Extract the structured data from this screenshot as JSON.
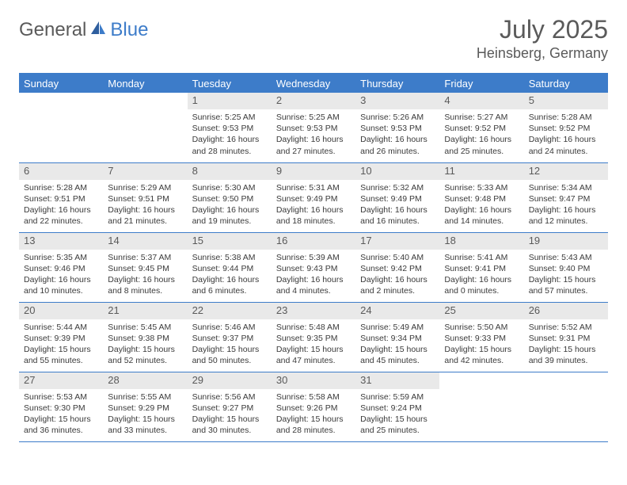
{
  "brand": {
    "text1": "General",
    "text2": "Blue"
  },
  "title": "July 2025",
  "location": "Heinsberg, Germany",
  "colors": {
    "accent": "#3d7cc9",
    "header_text": "#ffffff",
    "daynum_bg": "#e9e9e9",
    "text_muted": "#5a5a5a",
    "body_text": "#3a3a3a",
    "background": "#ffffff"
  },
  "columns": [
    "Sunday",
    "Monday",
    "Tuesday",
    "Wednesday",
    "Thursday",
    "Friday",
    "Saturday"
  ],
  "weeks": [
    [
      {
        "n": "",
        "sunrise": "",
        "sunset": "",
        "daylight": ""
      },
      {
        "n": "",
        "sunrise": "",
        "sunset": "",
        "daylight": ""
      },
      {
        "n": "1",
        "sunrise": "Sunrise: 5:25 AM",
        "sunset": "Sunset: 9:53 PM",
        "daylight": "Daylight: 16 hours and 28 minutes."
      },
      {
        "n": "2",
        "sunrise": "Sunrise: 5:25 AM",
        "sunset": "Sunset: 9:53 PM",
        "daylight": "Daylight: 16 hours and 27 minutes."
      },
      {
        "n": "3",
        "sunrise": "Sunrise: 5:26 AM",
        "sunset": "Sunset: 9:53 PM",
        "daylight": "Daylight: 16 hours and 26 minutes."
      },
      {
        "n": "4",
        "sunrise": "Sunrise: 5:27 AM",
        "sunset": "Sunset: 9:52 PM",
        "daylight": "Daylight: 16 hours and 25 minutes."
      },
      {
        "n": "5",
        "sunrise": "Sunrise: 5:28 AM",
        "sunset": "Sunset: 9:52 PM",
        "daylight": "Daylight: 16 hours and 24 minutes."
      }
    ],
    [
      {
        "n": "6",
        "sunrise": "Sunrise: 5:28 AM",
        "sunset": "Sunset: 9:51 PM",
        "daylight": "Daylight: 16 hours and 22 minutes."
      },
      {
        "n": "7",
        "sunrise": "Sunrise: 5:29 AM",
        "sunset": "Sunset: 9:51 PM",
        "daylight": "Daylight: 16 hours and 21 minutes."
      },
      {
        "n": "8",
        "sunrise": "Sunrise: 5:30 AM",
        "sunset": "Sunset: 9:50 PM",
        "daylight": "Daylight: 16 hours and 19 minutes."
      },
      {
        "n": "9",
        "sunrise": "Sunrise: 5:31 AM",
        "sunset": "Sunset: 9:49 PM",
        "daylight": "Daylight: 16 hours and 18 minutes."
      },
      {
        "n": "10",
        "sunrise": "Sunrise: 5:32 AM",
        "sunset": "Sunset: 9:49 PM",
        "daylight": "Daylight: 16 hours and 16 minutes."
      },
      {
        "n": "11",
        "sunrise": "Sunrise: 5:33 AM",
        "sunset": "Sunset: 9:48 PM",
        "daylight": "Daylight: 16 hours and 14 minutes."
      },
      {
        "n": "12",
        "sunrise": "Sunrise: 5:34 AM",
        "sunset": "Sunset: 9:47 PM",
        "daylight": "Daylight: 16 hours and 12 minutes."
      }
    ],
    [
      {
        "n": "13",
        "sunrise": "Sunrise: 5:35 AM",
        "sunset": "Sunset: 9:46 PM",
        "daylight": "Daylight: 16 hours and 10 minutes."
      },
      {
        "n": "14",
        "sunrise": "Sunrise: 5:37 AM",
        "sunset": "Sunset: 9:45 PM",
        "daylight": "Daylight: 16 hours and 8 minutes."
      },
      {
        "n": "15",
        "sunrise": "Sunrise: 5:38 AM",
        "sunset": "Sunset: 9:44 PM",
        "daylight": "Daylight: 16 hours and 6 minutes."
      },
      {
        "n": "16",
        "sunrise": "Sunrise: 5:39 AM",
        "sunset": "Sunset: 9:43 PM",
        "daylight": "Daylight: 16 hours and 4 minutes."
      },
      {
        "n": "17",
        "sunrise": "Sunrise: 5:40 AM",
        "sunset": "Sunset: 9:42 PM",
        "daylight": "Daylight: 16 hours and 2 minutes."
      },
      {
        "n": "18",
        "sunrise": "Sunrise: 5:41 AM",
        "sunset": "Sunset: 9:41 PM",
        "daylight": "Daylight: 16 hours and 0 minutes."
      },
      {
        "n": "19",
        "sunrise": "Sunrise: 5:43 AM",
        "sunset": "Sunset: 9:40 PM",
        "daylight": "Daylight: 15 hours and 57 minutes."
      }
    ],
    [
      {
        "n": "20",
        "sunrise": "Sunrise: 5:44 AM",
        "sunset": "Sunset: 9:39 PM",
        "daylight": "Daylight: 15 hours and 55 minutes."
      },
      {
        "n": "21",
        "sunrise": "Sunrise: 5:45 AM",
        "sunset": "Sunset: 9:38 PM",
        "daylight": "Daylight: 15 hours and 52 minutes."
      },
      {
        "n": "22",
        "sunrise": "Sunrise: 5:46 AM",
        "sunset": "Sunset: 9:37 PM",
        "daylight": "Daylight: 15 hours and 50 minutes."
      },
      {
        "n": "23",
        "sunrise": "Sunrise: 5:48 AM",
        "sunset": "Sunset: 9:35 PM",
        "daylight": "Daylight: 15 hours and 47 minutes."
      },
      {
        "n": "24",
        "sunrise": "Sunrise: 5:49 AM",
        "sunset": "Sunset: 9:34 PM",
        "daylight": "Daylight: 15 hours and 45 minutes."
      },
      {
        "n": "25",
        "sunrise": "Sunrise: 5:50 AM",
        "sunset": "Sunset: 9:33 PM",
        "daylight": "Daylight: 15 hours and 42 minutes."
      },
      {
        "n": "26",
        "sunrise": "Sunrise: 5:52 AM",
        "sunset": "Sunset: 9:31 PM",
        "daylight": "Daylight: 15 hours and 39 minutes."
      }
    ],
    [
      {
        "n": "27",
        "sunrise": "Sunrise: 5:53 AM",
        "sunset": "Sunset: 9:30 PM",
        "daylight": "Daylight: 15 hours and 36 minutes."
      },
      {
        "n": "28",
        "sunrise": "Sunrise: 5:55 AM",
        "sunset": "Sunset: 9:29 PM",
        "daylight": "Daylight: 15 hours and 33 minutes."
      },
      {
        "n": "29",
        "sunrise": "Sunrise: 5:56 AM",
        "sunset": "Sunset: 9:27 PM",
        "daylight": "Daylight: 15 hours and 30 minutes."
      },
      {
        "n": "30",
        "sunrise": "Sunrise: 5:58 AM",
        "sunset": "Sunset: 9:26 PM",
        "daylight": "Daylight: 15 hours and 28 minutes."
      },
      {
        "n": "31",
        "sunrise": "Sunrise: 5:59 AM",
        "sunset": "Sunset: 9:24 PM",
        "daylight": "Daylight: 15 hours and 25 minutes."
      },
      {
        "n": "",
        "sunrise": "",
        "sunset": "",
        "daylight": ""
      },
      {
        "n": "",
        "sunrise": "",
        "sunset": "",
        "daylight": ""
      }
    ]
  ]
}
